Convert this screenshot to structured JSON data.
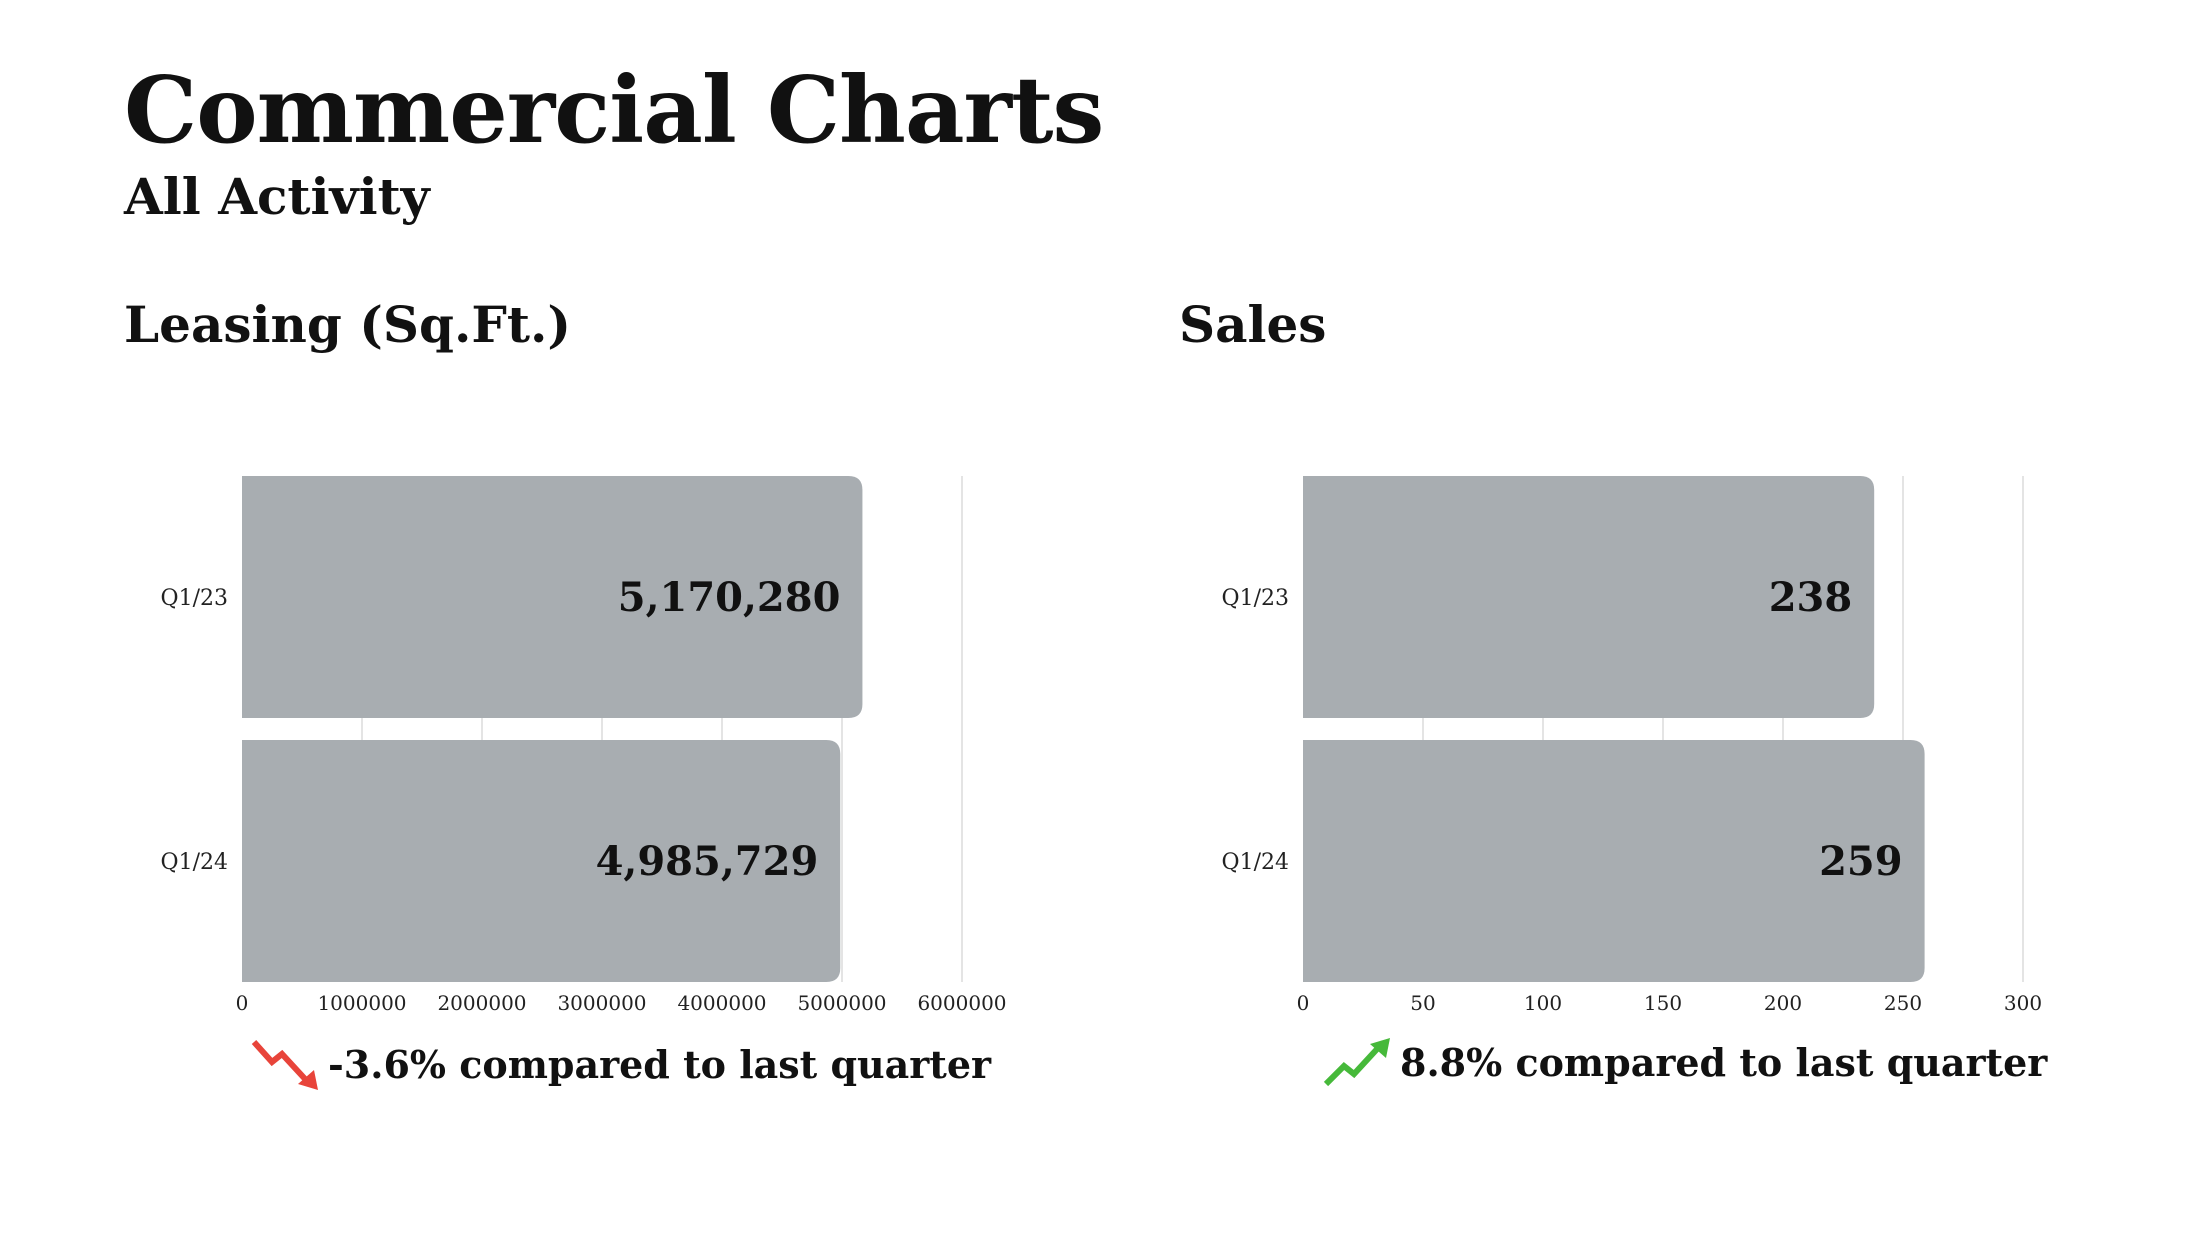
{
  "page": {
    "title": "Commercial Charts",
    "subtitle": "All Activity"
  },
  "colors": {
    "bar": "#a8adb1",
    "down": "#e8443a",
    "up": "#46b93a"
  },
  "chart_data": [
    {
      "type": "bar",
      "orientation": "horizontal",
      "title": "Leasing (Sq.Ft.)",
      "categories": [
        "Q1/23",
        "Q1/24"
      ],
      "values": [
        5170280,
        4985729
      ],
      "value_labels": [
        "5,170,280",
        "4,985,729"
      ],
      "xlim": [
        0,
        6000000
      ],
      "xticks": [
        0,
        1000000,
        2000000,
        3000000,
        4000000,
        5000000,
        6000000
      ],
      "xtick_labels": [
        "0",
        "1000000",
        "2000000",
        "3000000",
        "4000000",
        "5000000",
        "6000000"
      ],
      "grid": true,
      "change": {
        "direction": "down",
        "icon": "trend-down-arrow-icon",
        "text": "-3.6% compared to last quarter"
      }
    },
    {
      "type": "bar",
      "orientation": "horizontal",
      "title": "Sales",
      "categories": [
        "Q1/23",
        "Q1/24"
      ],
      "values": [
        238,
        259
      ],
      "value_labels": [
        "238",
        "259"
      ],
      "xlim": [
        0,
        300
      ],
      "xticks": [
        0,
        50,
        100,
        150,
        200,
        250,
        300
      ],
      "xtick_labels": [
        "0",
        "50",
        "100",
        "150",
        "200",
        "250",
        "300"
      ],
      "grid": true,
      "change": {
        "direction": "up",
        "icon": "trend-up-arrow-icon",
        "text": "8.8% compared to last quarter"
      }
    }
  ]
}
